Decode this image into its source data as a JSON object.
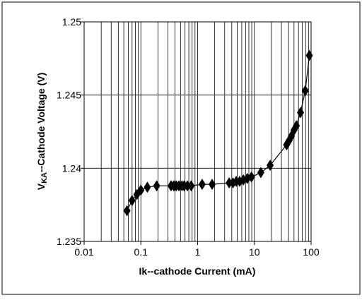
{
  "chart_data": {
    "type": "scatter",
    "title": "",
    "xlabel": "Ik--cathode Current (mA)",
    "ylabel": "VKA--Cathode Voltage (V)",
    "ylabel_parts": {
      "main": "V",
      "subscript": "KA",
      "rest": "--Cathode Voltage (V)"
    },
    "xscale": "log",
    "xlim": [
      0.01,
      100
    ],
    "ylim": [
      1.235,
      1.25
    ],
    "x_ticks": [
      0.01,
      0.1,
      1,
      10,
      100
    ],
    "x_tick_labels": [
      "0.01",
      "0.1",
      "1",
      "10",
      "100"
    ],
    "y_ticks": [
      1.235,
      1.24,
      1.245,
      1.25
    ],
    "y_tick_labels": [
      "1.235",
      "1.24",
      "1.245",
      "1.25"
    ],
    "grid": true,
    "legend": "none",
    "marker": "diamond",
    "line_color": "#000000",
    "marker_color": "#000000",
    "series": [
      {
        "x": [
          0.057,
          0.07,
          0.085,
          0.1,
          0.13,
          0.19,
          0.34,
          0.38,
          0.42,
          0.47,
          0.53,
          0.58,
          0.66,
          0.77,
          1.2,
          1.8,
          3.6,
          4.2,
          4.8,
          5.5,
          6.4,
          7.5,
          8.9,
          13,
          19,
          37,
          41,
          45,
          50,
          55,
          65,
          79,
          93
        ],
        "y": [
          1.2371,
          1.2378,
          1.2382,
          1.2385,
          1.2387,
          1.2388,
          1.2388,
          1.2388,
          1.2388,
          1.2388,
          1.2388,
          1.2388,
          1.2388,
          1.2388,
          1.2389,
          1.2389,
          1.239,
          1.239,
          1.2391,
          1.2391,
          1.2392,
          1.2393,
          1.2394,
          1.2397,
          1.2402,
          1.2416,
          1.2419,
          1.2422,
          1.2426,
          1.2429,
          1.2438,
          1.2453,
          1.2477
        ]
      }
    ]
  }
}
